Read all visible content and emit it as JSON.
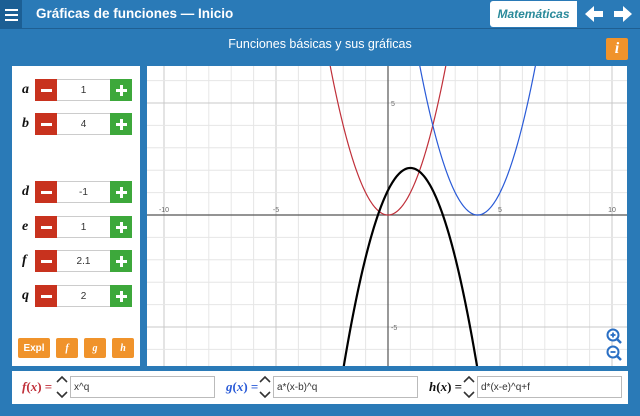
{
  "header": {
    "title": "Gráficas de funciones — Inicio",
    "subject": "Matemáticas",
    "menu_icon": "hamburger-menu-icon",
    "prev_icon": "arrow-left-icon",
    "next_icon": "arrow-right-icon"
  },
  "page": {
    "subtitle": "Funciones básicas y sus gráficas",
    "info_label": "i"
  },
  "params": [
    {
      "name": "a",
      "value": "1"
    },
    {
      "name": "b",
      "value": "4"
    },
    {
      "name": "d",
      "value": "-1"
    },
    {
      "name": "e",
      "value": "1"
    },
    {
      "name": "f",
      "value": "2.1"
    },
    {
      "name": "q",
      "value": "2"
    }
  ],
  "buttons": {
    "expl": "Expl",
    "f": "f",
    "g": "g",
    "h": "h"
  },
  "graph": {
    "x_ticks": [
      "-10",
      "-5",
      "5",
      "10"
    ],
    "y_ticks": [
      "5",
      "-5"
    ],
    "curve_colors": {
      "f": "#c0303a",
      "g": "#2a5bd7",
      "h": "#000000"
    }
  },
  "functions": {
    "f": {
      "label_name": "f",
      "label_var": "x",
      "expr": "x^q"
    },
    "g": {
      "label_name": "g",
      "label_var": "x",
      "expr": "a*(x-b)^q"
    },
    "h": {
      "label_name": "h",
      "label_var": "x",
      "expr": "d*(x-e)^q+f"
    }
  },
  "colors": {
    "brand_blue": "#2a7ab7",
    "accent_orange": "#f0932b",
    "minus_red": "#c8321e",
    "plus_green": "#3da83b",
    "f_red": "#c0303a",
    "g_blue": "#2a5bd7",
    "h_black": "#000000"
  }
}
